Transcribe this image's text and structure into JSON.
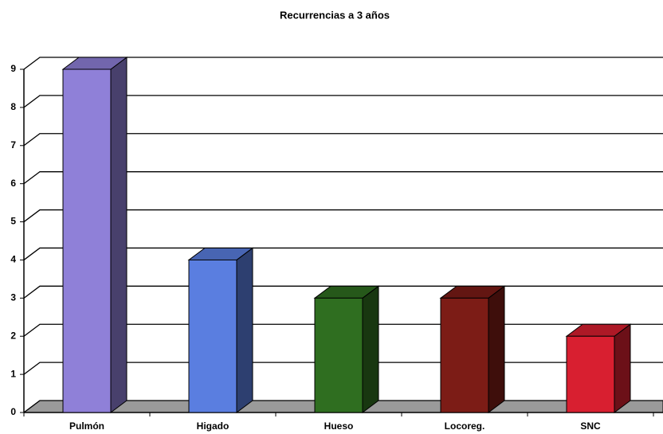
{
  "chart_data": {
    "type": "bar3d",
    "title": "Recurrencias a 3 años",
    "categories": [
      "Pulmón",
      "Higado",
      "Hueso",
      "Locoreg.",
      "SNC"
    ],
    "values": [
      9,
      4,
      3,
      3,
      2
    ],
    "colors": [
      "#8f80d8",
      "#5a7ee0",
      "#2f6e20",
      "#7c1c16",
      "#d81f30"
    ],
    "ylim": [
      0,
      9
    ],
    "yticks": [
      0,
      1,
      2,
      3,
      4,
      5,
      6,
      7,
      8,
      9
    ],
    "grid": true
  }
}
